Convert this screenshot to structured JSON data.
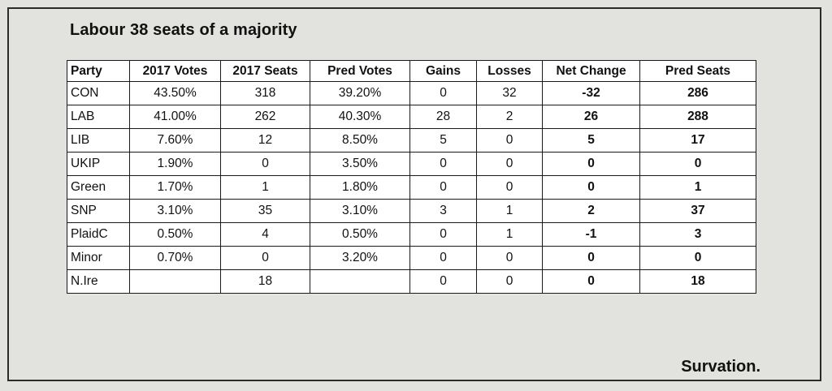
{
  "title": "Labour 38 seats of a majority",
  "brand": "Survation.",
  "table": {
    "headers": [
      "Party",
      "2017 Votes",
      "2017 Seats",
      "Pred Votes",
      "Gains",
      "Losses",
      "Net Change",
      "Pred Seats"
    ],
    "rows": [
      [
        "CON",
        "43.50%",
        "318",
        "39.20%",
        "0",
        "32",
        "-32",
        "286"
      ],
      [
        "LAB",
        "41.00%",
        "262",
        "40.30%",
        "28",
        "2",
        "26",
        "288"
      ],
      [
        "LIB",
        "7.60%",
        "12",
        "8.50%",
        "5",
        "0",
        "5",
        "17"
      ],
      [
        "UKIP",
        "1.90%",
        "0",
        "3.50%",
        "0",
        "0",
        "0",
        "0"
      ],
      [
        "Green",
        "1.70%",
        "1",
        "1.80%",
        "0",
        "0",
        "0",
        "1"
      ],
      [
        "SNP",
        "3.10%",
        "35",
        "3.10%",
        "3",
        "1",
        "2",
        "37"
      ],
      [
        "PlaidC",
        "0.50%",
        "4",
        "0.50%",
        "0",
        "1",
        "-1",
        "3"
      ],
      [
        "Minor",
        "0.70%",
        "0",
        "3.20%",
        "0",
        "0",
        "0",
        "0"
      ],
      [
        "N.Ire",
        "",
        "18",
        "",
        "0",
        "0",
        "0",
        "18"
      ]
    ]
  }
}
